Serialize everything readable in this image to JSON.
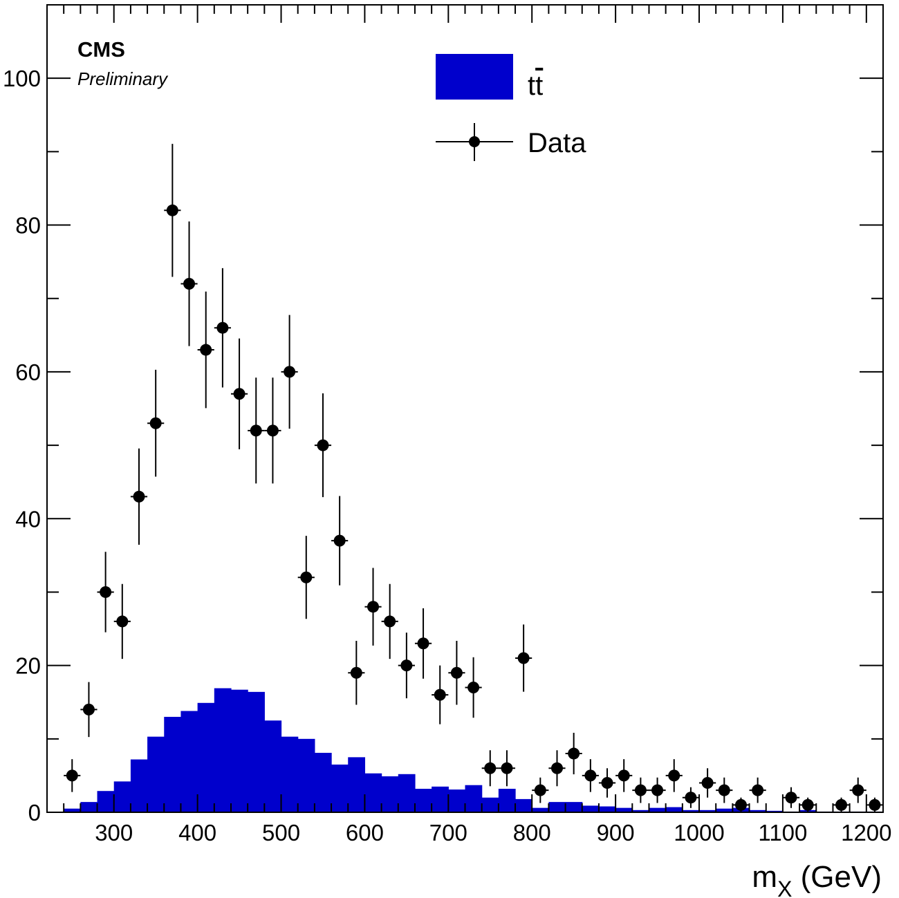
{
  "labels": {
    "experiment": "CMS",
    "status": "Preliminary",
    "xlabel_main": "m",
    "xlabel_sub": "X",
    "xlabel_unit": " (GeV)"
  },
  "legend": {
    "ttbar_base": "t",
    "ttbar_bar": "t",
    "data": "Data"
  },
  "colors": {
    "ttbar_fill": "#0000cc",
    "data": "#000000",
    "axis": "#000000"
  },
  "chart_data": {
    "type": "bar",
    "xlabel": "m_X (GeV)",
    "ylabel": "",
    "xlim": [
      220,
      1220
    ],
    "ylim": [
      0,
      110
    ],
    "grid": false,
    "legend_position": "top-center",
    "x_ticks": [
      300,
      400,
      500,
      600,
      700,
      800,
      900,
      1000,
      1100,
      1200
    ],
    "y_ticks": [
      0,
      20,
      40,
      60,
      80,
      100
    ],
    "bin_width": 20,
    "series": [
      {
        "name": "tt̄",
        "type": "histogram",
        "bin_edges": [
          240,
          260,
          280,
          300,
          320,
          340,
          360,
          380,
          400,
          420,
          440,
          460,
          480,
          500,
          520,
          540,
          560,
          580,
          600,
          620,
          640,
          660,
          680,
          700,
          720,
          740,
          760,
          780,
          800,
          820,
          840,
          860,
          880,
          900,
          920,
          940,
          960,
          980,
          1000,
          1020,
          1040,
          1060,
          1080,
          1100,
          1120,
          1140,
          1160,
          1180,
          1200,
          1220
        ],
        "values": [
          0.5,
          1.4,
          2.9,
          4.2,
          7.2,
          10.3,
          13.0,
          13.8,
          14.9,
          16.9,
          16.7,
          16.4,
          12.5,
          10.3,
          10.0,
          8.1,
          6.5,
          7.5,
          5.3,
          4.9,
          5.2,
          3.2,
          3.5,
          3.1,
          3.7,
          2.0,
          3.2,
          1.8,
          0.6,
          1.4,
          1.4,
          0.9,
          0.8,
          0.6,
          0.3,
          0.6,
          0.7,
          0.3,
          0.3,
          0.5,
          0.6,
          0.3,
          0.2,
          0.1,
          0.3,
          0.1,
          0.1,
          0.1,
          0.1
        ]
      },
      {
        "name": "Data",
        "type": "points",
        "x": [
          250,
          270,
          290,
          310,
          330,
          350,
          370,
          390,
          410,
          430,
          450,
          470,
          490,
          510,
          530,
          550,
          570,
          590,
          610,
          630,
          650,
          670,
          690,
          710,
          730,
          750,
          770,
          790,
          810,
          830,
          850,
          870,
          890,
          910,
          930,
          950,
          970,
          990,
          1010,
          1030,
          1050,
          1070,
          1110,
          1130,
          1170,
          1190,
          1210
        ],
        "y": [
          5,
          14,
          30,
          26,
          43,
          53,
          82,
          72,
          63,
          66,
          57,
          52,
          52,
          60,
          32,
          50,
          37,
          19,
          28,
          26,
          20,
          23,
          16,
          19,
          17,
          6,
          6,
          21,
          3,
          6,
          8,
          5,
          4,
          5,
          3,
          3,
          5,
          2,
          4,
          3,
          1,
          3,
          2,
          1,
          1,
          3,
          1
        ]
      }
    ]
  }
}
